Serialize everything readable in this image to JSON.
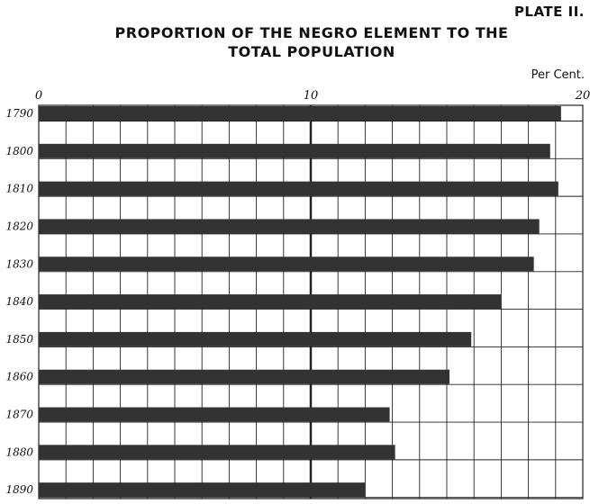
{
  "plate_label": "PLATE II.",
  "chart_data": {
    "type": "bar",
    "orientation": "horizontal",
    "title": "PROPORTION OF THE NEGRO ELEMENT TO THE TOTAL POPULATION",
    "xlabel": "Per Cent.",
    "xlim": [
      0,
      20
    ],
    "xticks": [
      "0",
      "10",
      "20"
    ],
    "grid": true,
    "categories": [
      "1790",
      "1800",
      "1810",
      "1820",
      "1830",
      "1840",
      "1850",
      "1860",
      "1870",
      "1880",
      "1890"
    ],
    "values": [
      19.2,
      18.8,
      19.1,
      18.4,
      18.2,
      17.0,
      15.9,
      15.1,
      12.9,
      13.1,
      12.0
    ],
    "bar_color": "#333333"
  }
}
